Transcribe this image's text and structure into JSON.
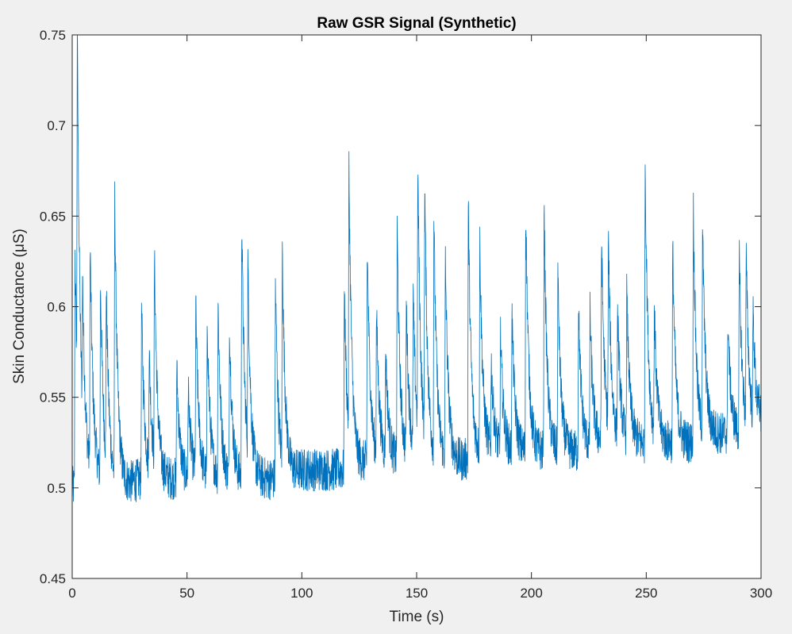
{
  "chart_data": {
    "type": "line",
    "title": "Raw GSR Signal (Synthetic)",
    "xlabel": "Time (s)",
    "ylabel": "Skin Conductance (μS)",
    "xlim": [
      0,
      300
    ],
    "ylim": [
      0.45,
      0.75
    ],
    "xticks": [
      0,
      50,
      100,
      150,
      200,
      250,
      300
    ],
    "yticks": [
      0.45,
      0.5,
      0.55,
      0.6,
      0.65,
      0.7,
      0.75
    ],
    "xtick_labels": [
      "0",
      "50",
      "100",
      "150",
      "200",
      "250",
      "300"
    ],
    "ytick_labels": [
      "0.45",
      "0.5",
      "0.55",
      "0.6",
      "0.65",
      "0.7",
      "0.75"
    ],
    "grid": false,
    "colors": {
      "line": "#0072BD",
      "axes_bg": "#ffffff",
      "figure_bg": "#f0f0f0",
      "axis": "#262626"
    },
    "series": [
      {
        "x": [
          0,
          10,
          20,
          30,
          40,
          50,
          60,
          70,
          80,
          90,
          100,
          110,
          120,
          130,
          140,
          150,
          160,
          170,
          180,
          190,
          200,
          210,
          220,
          230,
          240,
          250,
          260,
          270,
          280,
          290,
          300
        ],
        "values": [
          0.5,
          0.505,
          0.5,
          0.505,
          0.505,
          0.505,
          0.505,
          0.505,
          0.505,
          0.505,
          0.51,
          0.51,
          0.51,
          0.515,
          0.515,
          0.515,
          0.515,
          0.515,
          0.52,
          0.52,
          0.52,
          0.52,
          0.52,
          0.525,
          0.525,
          0.525,
          0.525,
          0.525,
          0.53,
          0.53,
          0.53
        ]
      }
    ],
    "spikes": [
      {
        "t": 1.2,
        "peak": 0.643
      },
      {
        "t": 2.2,
        "peak": 0.704
      },
      {
        "t": 4.5,
        "peak": 0.586
      },
      {
        "t": 7.8,
        "peak": 0.637
      },
      {
        "t": 12.3,
        "peak": 0.623
      },
      {
        "t": 14.8,
        "peak": 0.608
      },
      {
        "t": 18.5,
        "peak": 0.667
      },
      {
        "t": 30.2,
        "peak": 0.611
      },
      {
        "t": 33.5,
        "peak": 0.58
      },
      {
        "t": 35.8,
        "peak": 0.628
      },
      {
        "t": 45.5,
        "peak": 0.579
      },
      {
        "t": 50.5,
        "peak": 0.565
      },
      {
        "t": 53.8,
        "peak": 0.609
      },
      {
        "t": 58.8,
        "peak": 0.6
      },
      {
        "t": 63.5,
        "peak": 0.612
      },
      {
        "t": 68.5,
        "peak": 0.6
      },
      {
        "t": 73.8,
        "peak": 0.662
      },
      {
        "t": 76.5,
        "peak": 0.617
      },
      {
        "t": 88.5,
        "peak": 0.624
      },
      {
        "t": 91.5,
        "peak": 0.632
      },
      {
        "t": 118.5,
        "peak": 0.622
      },
      {
        "t": 120.5,
        "peak": 0.669
      },
      {
        "t": 128.5,
        "peak": 0.645
      },
      {
        "t": 132.5,
        "peak": 0.604
      },
      {
        "t": 136.5,
        "peak": 0.583
      },
      {
        "t": 141.5,
        "peak": 0.654
      },
      {
        "t": 145.5,
        "peak": 0.608
      },
      {
        "t": 148.5,
        "peak": 0.61
      },
      {
        "t": 150.5,
        "peak": 0.672
      },
      {
        "t": 153.5,
        "peak": 0.665
      },
      {
        "t": 157.5,
        "peak": 0.655
      },
      {
        "t": 162.5,
        "peak": 0.635
      },
      {
        "t": 172.5,
        "peak": 0.668
      },
      {
        "t": 177.5,
        "peak": 0.646
      },
      {
        "t": 182.5,
        "peak": 0.577
      },
      {
        "t": 186.5,
        "peak": 0.593
      },
      {
        "t": 191.5,
        "peak": 0.606
      },
      {
        "t": 197.5,
        "peak": 0.669
      },
      {
        "t": 205.5,
        "peak": 0.666
      },
      {
        "t": 211.5,
        "peak": 0.628
      },
      {
        "t": 220.5,
        "peak": 0.612
      },
      {
        "t": 225.5,
        "peak": 0.607
      },
      {
        "t": 230.5,
        "peak": 0.65
      },
      {
        "t": 233.5,
        "peak": 0.639
      },
      {
        "t": 237.5,
        "peak": 0.605
      },
      {
        "t": 241.5,
        "peak": 0.616
      },
      {
        "t": 249.5,
        "peak": 0.694
      },
      {
        "t": 253.5,
        "peak": 0.603
      },
      {
        "t": 261.5,
        "peak": 0.645
      },
      {
        "t": 270.5,
        "peak": 0.667
      },
      {
        "t": 274.5,
        "peak": 0.651
      },
      {
        "t": 285.5,
        "peak": 0.606
      },
      {
        "t": 290.5,
        "peak": 0.638
      },
      {
        "t": 293.5,
        "peak": 0.631
      },
      {
        "t": 296.5,
        "peak": 0.601
      },
      {
        "t": 299.0,
        "peak": 0.55
      }
    ],
    "noise_amplitude": 0.012
  }
}
